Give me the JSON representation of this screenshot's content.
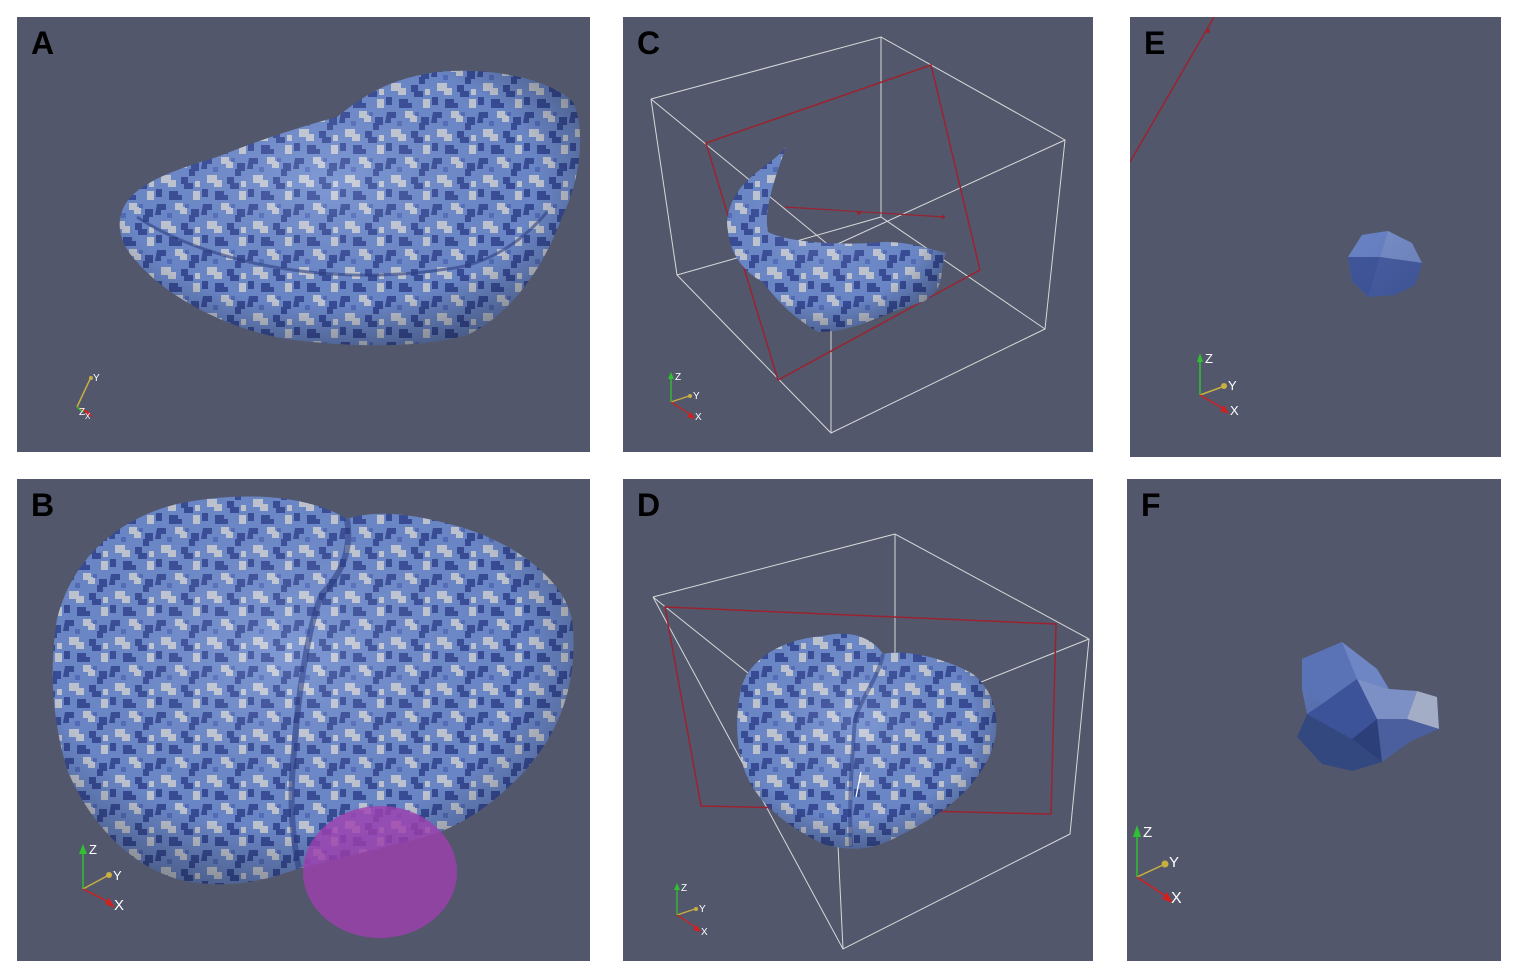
{
  "panels": {
    "a": {
      "label": "A",
      "axes": {
        "x": "X",
        "y": "Y",
        "z": "Z"
      }
    },
    "b": {
      "label": "B",
      "axes": {
        "x": "X",
        "y": "Y",
        "z": "Z"
      }
    },
    "c": {
      "label": "C",
      "axes": {
        "x": "X",
        "y": "Y",
        "z": "Z"
      }
    },
    "d": {
      "label": "D",
      "axes": {
        "x": "X",
        "y": "Y",
        "z": "Z"
      }
    },
    "e": {
      "label": "E",
      "axes": {
        "x": "X",
        "y": "Y",
        "z": "Z"
      }
    },
    "f": {
      "label": "F",
      "axes": {
        "x": "X",
        "y": "Y",
        "z": "Z"
      }
    }
  },
  "colors": {
    "background": "#52576c",
    "surface": "#6f8ccf",
    "surface_dark": "#3a4f9c",
    "surface_light": "#c5cbd8",
    "cut_plane": "#9b2330",
    "bounding_box": "#d8d8d8",
    "sphere": "#a23fb0",
    "axis_x": "#d02020",
    "axis_y": "#c8b040",
    "axis_z": "#30c030"
  }
}
